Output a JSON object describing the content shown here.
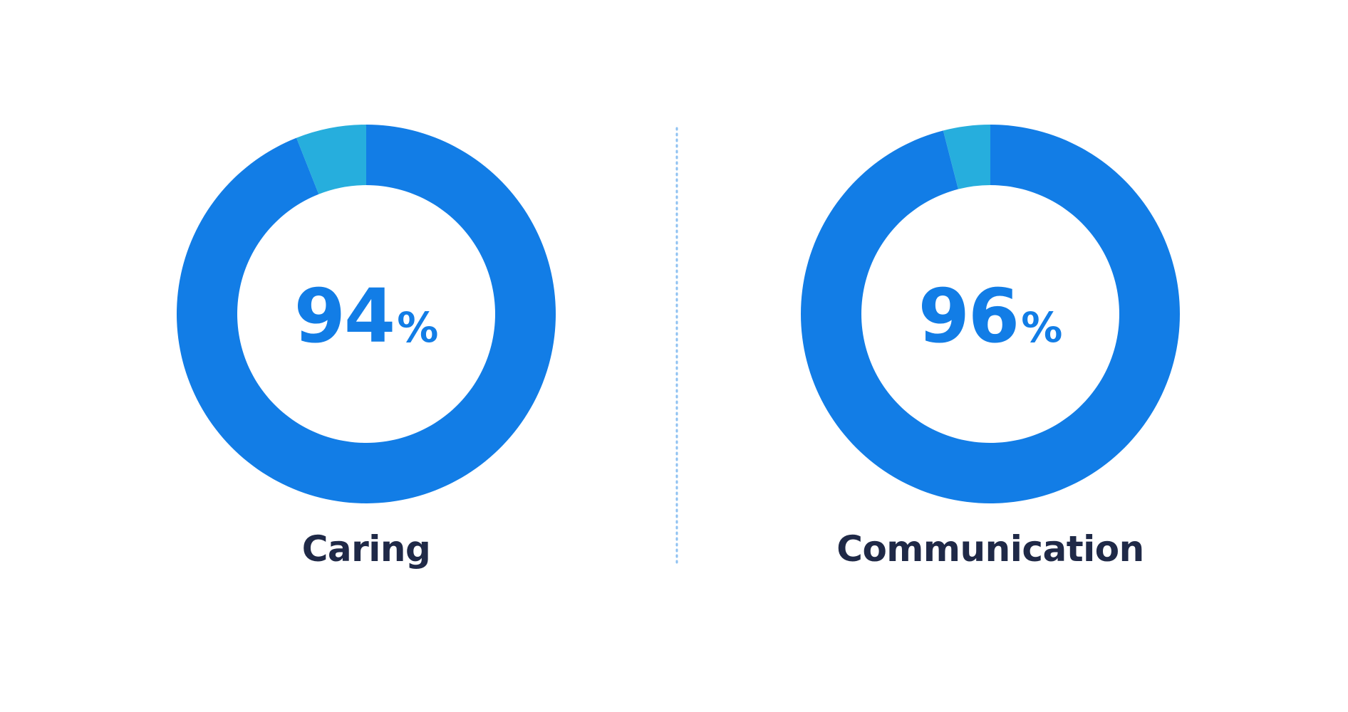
{
  "colors": {
    "primary": "#127DE6",
    "secondary": "#26AEDD",
    "text_dark": "#1F2947",
    "divider": "#8FC2F2"
  },
  "chart_data": [
    {
      "type": "pie",
      "donut": true,
      "title": "Caring",
      "value": 94,
      "value_label": "94",
      "unit": "%",
      "slices": [
        {
          "value": 94,
          "color": "#127DE6"
        },
        {
          "value": 6,
          "color": "#26AEDD"
        }
      ]
    },
    {
      "type": "pie",
      "donut": true,
      "title": "Communication",
      "value": 96,
      "value_label": "96",
      "unit": "%",
      "slices": [
        {
          "value": 96,
          "color": "#127DE6"
        },
        {
          "value": 4,
          "color": "#26AEDD"
        }
      ]
    }
  ]
}
